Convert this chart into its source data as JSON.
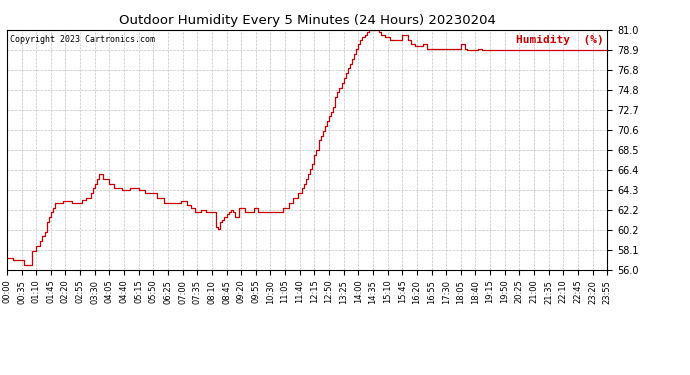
{
  "title": "Outdoor Humidity Every 5 Minutes (24 Hours) 20230204",
  "copyright": "Copyright 2023 Cartronics.com",
  "legend_label": "Humidity  (%)",
  "line_color": "#cc0000",
  "background_color": "#ffffff",
  "grid_color": "#aaaaaa",
  "ylim": [
    56.0,
    81.0
  ],
  "yticks": [
    56.0,
    58.1,
    60.2,
    62.2,
    64.3,
    66.4,
    68.5,
    70.6,
    72.7,
    74.8,
    76.8,
    78.9,
    81.0
  ],
  "tick_step_minutes": 35,
  "humidity_values": [
    57.2,
    57.2,
    57.2,
    57.0,
    57.0,
    57.0,
    57.0,
    57.0,
    56.5,
    56.5,
    56.5,
    56.5,
    58.0,
    58.0,
    58.5,
    58.5,
    59.0,
    59.5,
    60.0,
    61.0,
    61.5,
    62.0,
    62.5,
    63.0,
    63.0,
    63.0,
    63.0,
    63.2,
    63.2,
    63.2,
    63.2,
    63.0,
    63.0,
    63.0,
    63.0,
    63.0,
    63.3,
    63.3,
    63.5,
    63.5,
    64.0,
    64.5,
    65.0,
    65.5,
    66.0,
    66.0,
    65.5,
    65.5,
    65.5,
    65.0,
    65.0,
    64.5,
    64.5,
    64.5,
    64.5,
    64.3,
    64.3,
    64.3,
    64.3,
    64.5,
    64.5,
    64.5,
    64.5,
    64.3,
    64.3,
    64.3,
    64.0,
    64.0,
    64.0,
    64.0,
    64.0,
    64.0,
    63.5,
    63.5,
    63.5,
    63.0,
    63.0,
    63.0,
    63.0,
    63.0,
    63.0,
    63.0,
    63.0,
    63.2,
    63.2,
    63.2,
    62.8,
    62.8,
    62.5,
    62.5,
    62.0,
    62.0,
    62.0,
    62.2,
    62.2,
    62.0,
    62.0,
    62.0,
    62.0,
    62.0,
    60.5,
    60.3,
    61.0,
    61.2,
    61.5,
    61.8,
    62.0,
    62.2,
    62.0,
    61.5,
    61.5,
    62.5,
    62.5,
    62.5,
    62.0,
    62.0,
    62.0,
    62.0,
    62.5,
    62.5,
    62.0,
    62.0,
    62.0,
    62.0,
    62.0,
    62.0,
    62.0,
    62.0,
    62.0,
    62.0,
    62.0,
    62.0,
    62.5,
    62.5,
    62.5,
    63.0,
    63.0,
    63.5,
    63.5,
    64.0,
    64.0,
    64.5,
    65.0,
    65.5,
    66.0,
    66.5,
    67.0,
    68.0,
    68.5,
    69.5,
    70.0,
    70.5,
    71.0,
    71.5,
    72.0,
    72.5,
    73.0,
    74.0,
    74.5,
    75.0,
    75.5,
    76.0,
    76.5,
    77.0,
    77.5,
    78.0,
    78.5,
    79.0,
    79.5,
    80.0,
    80.3,
    80.5,
    80.8,
    81.0,
    81.0,
    81.0,
    81.0,
    81.0,
    80.8,
    80.5,
    80.5,
    80.3,
    80.3,
    80.0,
    80.0,
    80.0,
    80.0,
    80.0,
    80.0,
    80.5,
    80.5,
    80.5,
    80.0,
    79.5,
    79.5,
    79.3,
    79.3,
    79.3,
    79.3,
    79.5,
    79.5,
    79.0,
    79.0,
    79.0,
    79.0,
    79.0,
    79.0,
    79.0,
    79.0,
    79.0,
    79.0,
    79.0,
    79.0,
    79.0,
    79.0,
    79.0,
    79.0,
    79.5,
    79.5,
    79.0,
    78.9,
    78.9,
    78.9,
    78.9,
    78.9,
    79.0,
    79.0,
    78.9,
    78.9,
    78.9,
    78.9,
    78.9,
    78.9,
    78.9,
    78.9,
    78.9,
    78.9,
    78.9,
    78.9,
    78.9,
    78.9,
    78.9,
    78.9,
    78.9,
    78.9,
    78.9,
    78.9,
    78.9,
    78.9,
    78.9,
    78.9,
    78.9,
    78.9,
    78.9,
    78.9,
    78.9,
    78.9,
    78.9,
    78.9,
    78.9,
    78.9,
    78.9,
    78.9,
    78.9,
    78.9,
    78.9,
    78.9,
    78.9,
    78.9,
    78.9,
    78.9,
    78.9,
    78.9,
    78.9,
    78.9,
    78.9,
    78.9,
    78.9,
    78.9,
    78.9,
    78.9,
    78.9,
    78.9,
    78.9,
    78.9,
    78.9,
    78.9,
    78.9
  ]
}
